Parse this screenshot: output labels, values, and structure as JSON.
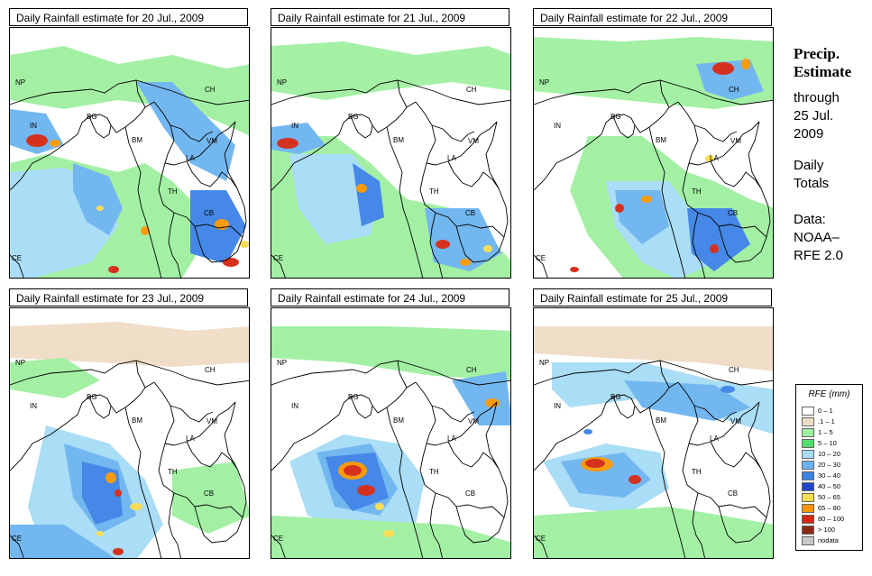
{
  "panels": [
    {
      "title": "Daily Rainfall estimate for  20 Jul., 2009"
    },
    {
      "title": "Daily Rainfall estimate for  21 Jul., 2009"
    },
    {
      "title": "Daily Rainfall estimate for  22 Jul., 2009"
    },
    {
      "title": "Daily Rainfall estimate for  23 Jul., 2009"
    },
    {
      "title": "Daily Rainfall estimate for  24 Jul., 2009"
    },
    {
      "title": "Daily Rainfall estimate for  25 Jul., 2009"
    }
  ],
  "country_labels": {
    "np": "NP",
    "ch": "CH",
    "in": "IN",
    "bg": "BG",
    "bm": "BM",
    "vm": "VM",
    "la": "LA",
    "th": "TH",
    "cb": "CB",
    "ce": "CE"
  },
  "side": {
    "title_line1": "Precip.",
    "title_line2": "Estimate",
    "through": "through",
    "date_line1": "25 Jul.",
    "date_line2": "2009",
    "daily1": "Daily",
    "daily2": "Totals",
    "data1": "Data:",
    "data2": "NOAA–",
    "data3": "RFE 2.0"
  },
  "legend": {
    "title": "RFE (mm)",
    "items": [
      {
        "label": "0 – 1",
        "color": "#ffffff"
      },
      {
        "label": ".1 – 1",
        "color": "#efdcc6"
      },
      {
        "label": "1 – 5",
        "color": "#9ff0a0"
      },
      {
        "label": "5 – 10",
        "color": "#55dc6e"
      },
      {
        "label": "10 – 20",
        "color": "#a6dcf6"
      },
      {
        "label": "20 – 30",
        "color": "#6cb4f0"
      },
      {
        "label": "30 – 40",
        "color": "#3c82e6"
      },
      {
        "label": "40 – 50",
        "color": "#1e46c8"
      },
      {
        "label": "50 – 65",
        "color": "#fadc50"
      },
      {
        "label": "65 – 80",
        "color": "#fa9600"
      },
      {
        "label": "80 – 100",
        "color": "#d22814"
      },
      {
        "label": "> 100",
        "color": "#8c2814"
      },
      {
        "label": "nodata",
        "color": "#c8c8c8"
      }
    ]
  }
}
